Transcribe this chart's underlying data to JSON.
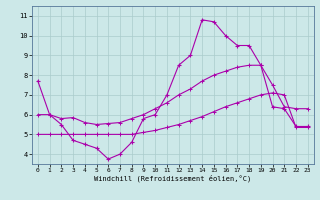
{
  "xlabel": "Windchill (Refroidissement éolien,°C)",
  "bg_color": "#cce8e8",
  "line_color": "#aa00aa",
  "grid_color": "#aacccc",
  "xlim": [
    -0.5,
    23.5
  ],
  "ylim": [
    3.5,
    11.5
  ],
  "xticks": [
    0,
    1,
    2,
    3,
    4,
    5,
    6,
    7,
    8,
    9,
    10,
    11,
    12,
    13,
    14,
    15,
    16,
    17,
    18,
    19,
    20,
    21,
    22,
    23
  ],
  "yticks": [
    4,
    5,
    6,
    7,
    8,
    9,
    10,
    11
  ],
  "line1_x": [
    0,
    1,
    2,
    3,
    4,
    5,
    6,
    7,
    8,
    9,
    10,
    11,
    12,
    13,
    14,
    15,
    16,
    17,
    18,
    19,
    20,
    21,
    22,
    23
  ],
  "line1_y": [
    7.7,
    6.0,
    5.5,
    4.7,
    4.5,
    4.3,
    3.75,
    4.0,
    4.6,
    5.8,
    6.0,
    7.0,
    8.5,
    9.0,
    10.8,
    10.7,
    10.0,
    9.5,
    9.5,
    8.5,
    6.4,
    6.3,
    5.4,
    5.4
  ],
  "line2_x": [
    0,
    1,
    2,
    3,
    4,
    5,
    6,
    7,
    8,
    9,
    10,
    11,
    12,
    13,
    14,
    15,
    16,
    17,
    18,
    19,
    20,
    21,
    22,
    23
  ],
  "line2_y": [
    5.0,
    5.0,
    5.0,
    5.0,
    5.0,
    5.0,
    5.0,
    5.0,
    5.0,
    5.1,
    5.2,
    5.35,
    5.5,
    5.7,
    5.9,
    6.15,
    6.4,
    6.6,
    6.8,
    7.0,
    7.1,
    7.0,
    5.35,
    5.35
  ],
  "line3_x": [
    0,
    1,
    2,
    3,
    4,
    5,
    6,
    7,
    8,
    9,
    10,
    11,
    12,
    13,
    14,
    15,
    16,
    17,
    18,
    19,
    20,
    21,
    22,
    23
  ],
  "line3_y": [
    6.0,
    6.0,
    5.8,
    5.85,
    5.6,
    5.5,
    5.55,
    5.6,
    5.8,
    6.0,
    6.3,
    6.6,
    7.0,
    7.3,
    7.7,
    8.0,
    8.2,
    8.4,
    8.5,
    8.5,
    7.5,
    6.4,
    6.3,
    6.3
  ]
}
